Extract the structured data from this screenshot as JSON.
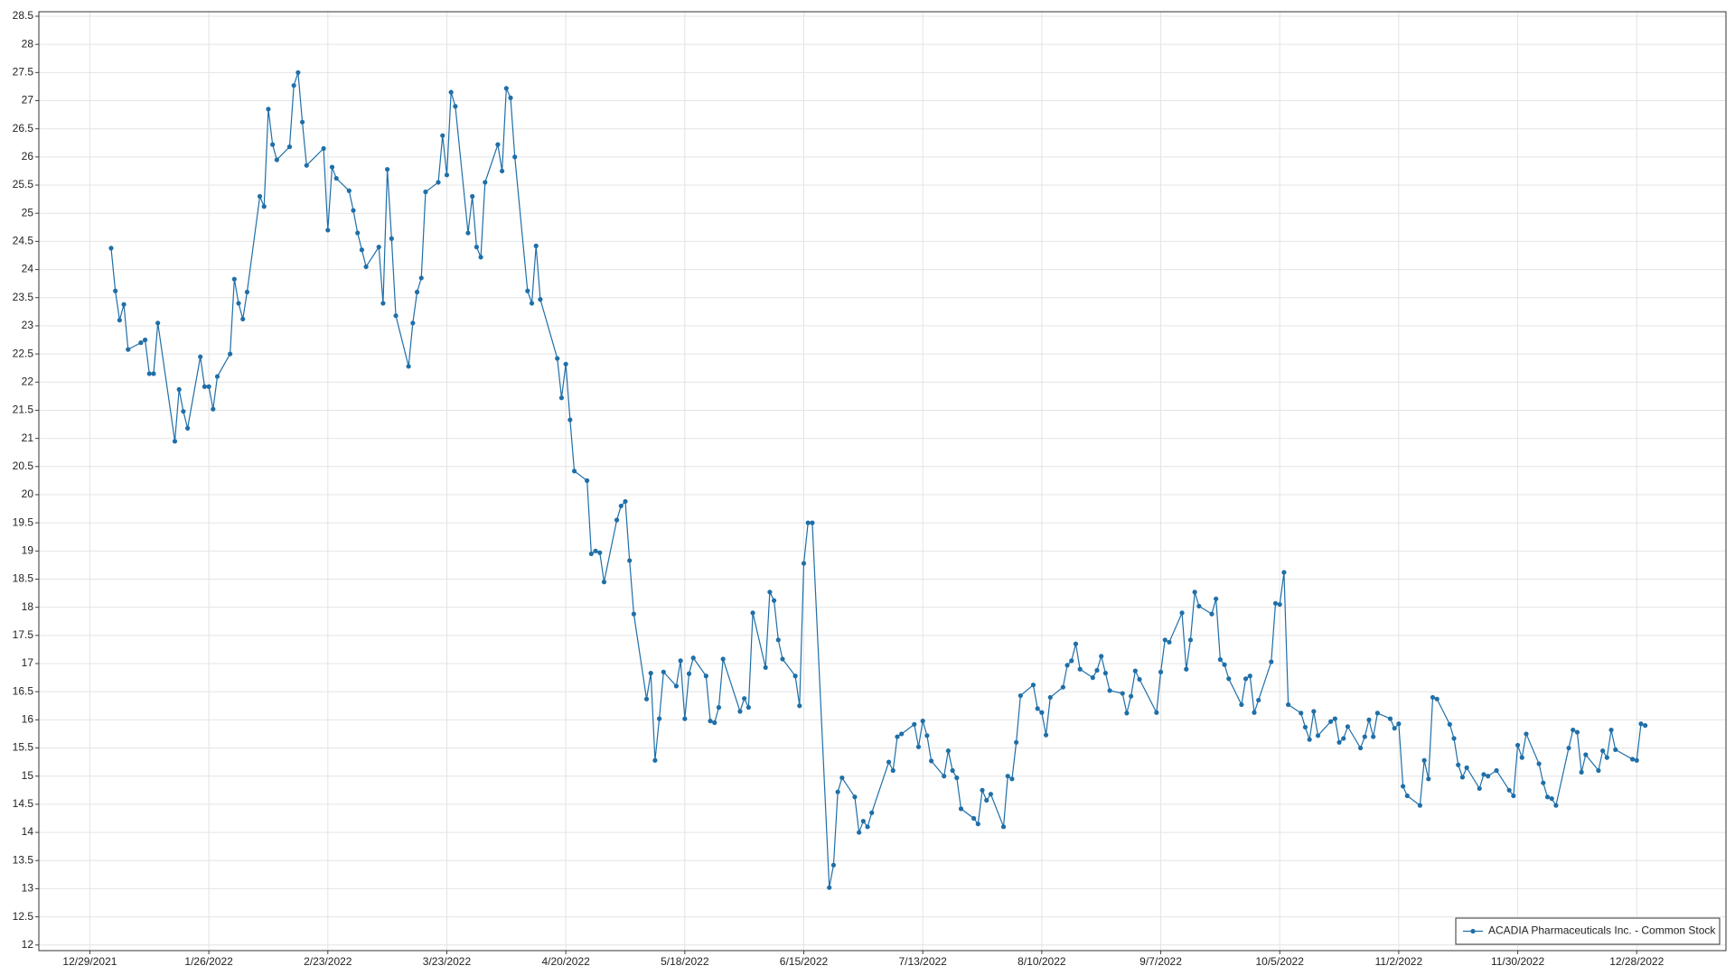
{
  "chart_data": {
    "type": "line",
    "x": [
      "1/3/2022",
      "1/4/2022",
      "1/5/2022",
      "1/6/2022",
      "1/7/2022",
      "1/10/2022",
      "1/11/2022",
      "1/12/2022",
      "1/13/2022",
      "1/14/2022",
      "1/18/2022",
      "1/19/2022",
      "1/20/2022",
      "1/21/2022",
      "1/24/2022",
      "1/25/2022",
      "1/26/2022",
      "1/27/2022",
      "1/28/2022",
      "1/31/2022",
      "2/1/2022",
      "2/2/2022",
      "2/3/2022",
      "2/4/2022",
      "2/7/2022",
      "2/8/2022",
      "2/9/2022",
      "2/10/2022",
      "2/11/2022",
      "2/14/2022",
      "2/15/2022",
      "2/16/2022",
      "2/17/2022",
      "2/18/2022",
      "2/22/2022",
      "2/23/2022",
      "2/24/2022",
      "2/25/2022",
      "2/28/2022",
      "3/1/2022",
      "3/2/2022",
      "3/3/2022",
      "3/4/2022",
      "3/7/2022",
      "3/8/2022",
      "3/9/2022",
      "3/10/2022",
      "3/11/2022",
      "3/14/2022",
      "3/15/2022",
      "3/16/2022",
      "3/17/2022",
      "3/18/2022",
      "3/21/2022",
      "3/22/2022",
      "3/23/2022",
      "3/24/2022",
      "3/25/2022",
      "3/28/2022",
      "3/29/2022",
      "3/30/2022",
      "3/31/2022",
      "4/1/2022",
      "4/4/2022",
      "4/5/2022",
      "4/6/2022",
      "4/7/2022",
      "4/8/2022",
      "4/11/2022",
      "4/12/2022",
      "4/13/2022",
      "4/14/2022",
      "4/18/2022",
      "4/19/2022",
      "4/20/2022",
      "4/21/2022",
      "4/22/2022",
      "4/25/2022",
      "4/26/2022",
      "4/27/2022",
      "4/28/2022",
      "4/29/2022",
      "5/2/2022",
      "5/3/2022",
      "5/4/2022",
      "5/5/2022",
      "5/6/2022",
      "5/9/2022",
      "5/10/2022",
      "5/11/2022",
      "5/12/2022",
      "5/13/2022",
      "5/16/2022",
      "5/17/2022",
      "5/18/2022",
      "5/19/2022",
      "5/20/2022",
      "5/23/2022",
      "5/24/2022",
      "5/25/2022",
      "5/26/2022",
      "5/27/2022",
      "5/31/2022",
      "6/1/2022",
      "6/2/2022",
      "6/3/2022",
      "6/6/2022",
      "6/7/2022",
      "6/8/2022",
      "6/9/2022",
      "6/10/2022",
      "6/13/2022",
      "6/14/2022",
      "6/15/2022",
      "6/16/2022",
      "6/17/2022",
      "6/21/2022",
      "6/22/2022",
      "6/23/2022",
      "6/24/2022",
      "6/27/2022",
      "6/28/2022",
      "6/29/2022",
      "6/30/2022",
      "7/1/2022",
      "7/5/2022",
      "7/6/2022",
      "7/7/2022",
      "7/8/2022",
      "7/11/2022",
      "7/12/2022",
      "7/13/2022",
      "7/14/2022",
      "7/15/2022",
      "7/18/2022",
      "7/19/2022",
      "7/20/2022",
      "7/21/2022",
      "7/22/2022",
      "7/25/2022",
      "7/26/2022",
      "7/27/2022",
      "7/28/2022",
      "7/29/2022",
      "8/1/2022",
      "8/2/2022",
      "8/3/2022",
      "8/4/2022",
      "8/5/2022",
      "8/8/2022",
      "8/9/2022",
      "8/10/2022",
      "8/11/2022",
      "8/12/2022",
      "8/15/2022",
      "8/16/2022",
      "8/17/2022",
      "8/18/2022",
      "8/19/2022",
      "8/22/2022",
      "8/23/2022",
      "8/24/2022",
      "8/25/2022",
      "8/26/2022",
      "8/29/2022",
      "8/30/2022",
      "8/31/2022",
      "9/1/2022",
      "9/2/2022",
      "9/6/2022",
      "9/7/2022",
      "9/8/2022",
      "9/9/2022",
      "9/12/2022",
      "9/13/2022",
      "9/14/2022",
      "9/15/2022",
      "9/16/2022",
      "9/19/2022",
      "9/20/2022",
      "9/21/2022",
      "9/22/2022",
      "9/23/2022",
      "9/26/2022",
      "9/27/2022",
      "9/28/2022",
      "9/29/2022",
      "9/30/2022",
      "10/3/2022",
      "10/4/2022",
      "10/5/2022",
      "10/6/2022",
      "10/7/2022",
      "10/10/2022",
      "10/11/2022",
      "10/12/2022",
      "10/13/2022",
      "10/14/2022",
      "10/17/2022",
      "10/18/2022",
      "10/19/2022",
      "10/20/2022",
      "10/21/2022",
      "10/24/2022",
      "10/25/2022",
      "10/26/2022",
      "10/27/2022",
      "10/28/2022",
      "10/31/2022",
      "11/1/2022",
      "11/2/2022",
      "11/3/2022",
      "11/4/2022",
      "11/7/2022",
      "11/8/2022",
      "11/9/2022",
      "11/10/2022",
      "11/11/2022",
      "11/14/2022",
      "11/15/2022",
      "11/16/2022",
      "11/17/2022",
      "11/18/2022",
      "11/21/2022",
      "11/22/2022",
      "11/23/2022",
      "11/25/2022",
      "11/28/2022",
      "11/29/2022",
      "11/30/2022",
      "12/1/2022",
      "12/2/2022",
      "12/5/2022",
      "12/6/2022",
      "12/7/2022",
      "12/8/2022",
      "12/9/2022",
      "12/12/2022",
      "12/13/2022",
      "12/14/2022",
      "12/15/2022",
      "12/16/2022",
      "12/19/2022",
      "12/20/2022",
      "12/21/2022",
      "12/22/2022",
      "12/23/2022",
      "12/27/2022",
      "12/28/2022",
      "12/29/2022",
      "12/30/2022"
    ],
    "series": [
      {
        "name": "ACADIA Pharmaceuticals Inc. - Common Stock",
        "color": "#1f6fa8",
        "values": [
          24.38,
          23.62,
          23.1,
          23.38,
          22.58,
          22.7,
          22.75,
          22.15,
          22.15,
          23.05,
          20.95,
          21.87,
          21.48,
          21.18,
          22.45,
          21.92,
          21.92,
          21.52,
          22.1,
          22.5,
          23.83,
          23.4,
          23.12,
          23.6,
          25.3,
          25.12,
          26.85,
          26.22,
          25.95,
          26.18,
          27.27,
          27.5,
          26.62,
          25.85,
          26.15,
          24.7,
          25.82,
          25.62,
          25.4,
          25.05,
          24.65,
          24.35,
          24.05,
          24.4,
          23.4,
          25.78,
          24.55,
          23.18,
          22.28,
          23.05,
          23.6,
          23.85,
          25.38,
          25.55,
          26.38,
          25.68,
          27.15,
          26.9,
          24.65,
          25.3,
          24.4,
          24.22,
          25.55,
          26.22,
          25.75,
          27.22,
          27.05,
          26.0,
          23.62,
          23.4,
          24.42,
          23.47,
          22.42,
          21.72,
          22.32,
          21.33,
          20.42,
          20.25,
          18.95,
          19.0,
          18.97,
          18.45,
          19.55,
          19.8,
          19.88,
          18.83,
          17.88,
          16.37,
          16.83,
          15.28,
          16.02,
          16.85,
          16.6,
          17.05,
          16.02,
          16.82,
          17.1,
          16.78,
          15.98,
          15.95,
          16.22,
          17.08,
          16.15,
          16.38,
          16.22,
          17.9,
          16.93,
          18.27,
          18.12,
          17.42,
          17.08,
          16.78,
          16.25,
          18.78,
          19.5,
          19.5,
          13.02,
          13.42,
          14.72,
          14.97,
          14.63,
          14.0,
          14.2,
          14.1,
          14.35,
          15.25,
          15.1,
          15.7,
          15.75,
          15.92,
          15.52,
          15.98,
          15.72,
          15.27,
          15.0,
          15.45,
          15.1,
          14.97,
          14.42,
          14.25,
          14.15,
          14.75,
          14.57,
          14.68,
          14.1,
          15.0,
          14.95,
          15.6,
          16.43,
          16.62,
          16.2,
          16.13,
          15.73,
          16.4,
          16.58,
          16.97,
          17.05,
          17.35,
          16.9,
          16.75,
          16.88,
          17.13,
          16.83,
          16.52,
          16.47,
          16.12,
          16.42,
          16.87,
          16.72,
          16.13,
          16.85,
          17.42,
          17.38,
          17.9,
          16.9,
          17.42,
          18.27,
          18.02,
          17.88,
          18.15,
          17.07,
          16.98,
          16.73,
          16.27,
          16.73,
          16.78,
          16.13,
          16.35,
          17.03,
          18.07,
          18.05,
          18.62,
          16.27,
          16.12,
          15.87,
          15.65,
          16.15,
          15.72,
          15.97,
          16.02,
          15.6,
          15.67,
          15.88,
          15.5,
          15.7,
          16.0,
          15.7,
          16.12,
          16.02,
          15.85,
          15.93,
          14.82,
          14.65,
          14.48,
          15.28,
          14.95,
          16.4,
          16.37,
          15.92,
          15.67,
          15.2,
          14.98,
          15.15,
          14.78,
          15.03,
          15.0,
          15.1,
          14.75,
          14.65,
          15.55,
          15.33,
          15.75,
          15.22,
          14.88,
          14.63,
          14.6,
          14.48,
          15.5,
          15.82,
          15.78,
          15.07,
          15.38,
          15.1,
          15.45,
          15.33,
          15.82,
          15.47,
          15.3,
          15.28,
          15.93,
          15.9
        ]
      }
    ],
    "xlim": [
      "12/17/2021",
      "1/18/2023"
    ],
    "xticks": [
      "12/29/2021",
      "1/26/2022",
      "2/23/2022",
      "3/23/2022",
      "4/20/2022",
      "5/18/2022",
      "6/15/2022",
      "7/13/2022",
      "8/10/2022",
      "9/7/2022",
      "10/5/2022",
      "11/2/2022",
      "11/30/2022",
      "12/28/2022"
    ],
    "ylim": [
      11.9,
      28.58
    ],
    "yticks": [
      12,
      12.5,
      13,
      13.5,
      14,
      14.5,
      15,
      15.5,
      16,
      16.5,
      17,
      17.5,
      18,
      18.5,
      19,
      19.5,
      20,
      20.5,
      21,
      21.5,
      22,
      22.5,
      23,
      23.5,
      24,
      24.5,
      25,
      25.5,
      26,
      26.5,
      27,
      27.5,
      28,
      28.5
    ],
    "grid": true,
    "legend": "lower right"
  }
}
